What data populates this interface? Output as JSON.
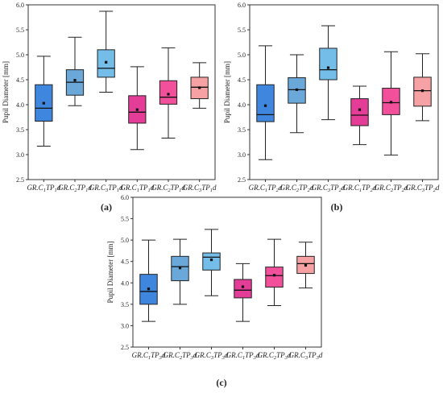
{
  "chart_data": [
    {
      "type": "box",
      "panel_label": "(a)",
      "ylabel": "Pupil Diameter [mm]",
      "ylim": [
        2.5,
        6.0
      ],
      "yticks": [
        2.5,
        3.0,
        3.5,
        4.0,
        4.5,
        5.0,
        5.5,
        6.0
      ],
      "categories": [
        {
          "prefix": "GR.C",
          "sub1": "1",
          "mid": "TP",
          "sub2": "1",
          "suffix": "d"
        },
        {
          "prefix": "GR.C",
          "sub1": "2",
          "mid": "TP",
          "sub2": "1",
          "suffix": "d"
        },
        {
          "prefix": "GR.C",
          "sub1": "3",
          "mid": "TP",
          "sub2": "1",
          "suffix": "d"
        },
        {
          "prefix": "GR.C",
          "sub1": "1",
          "mid": "TP",
          "sub2": "1",
          "suffix": "d"
        },
        {
          "prefix": "GR.C",
          "sub1": "2",
          "mid": "TP",
          "sub2": "1",
          "suffix": "d"
        },
        {
          "prefix": "GR.C",
          "sub1": "3",
          "mid": "TP",
          "sub2": "1",
          "suffix": "d"
        }
      ],
      "boxes": [
        {
          "min": 3.17,
          "q1": 3.67,
          "median": 3.93,
          "q3": 4.4,
          "max": 4.97,
          "mean": 4.03,
          "color": "#3f86de"
        },
        {
          "min": 3.98,
          "q1": 4.19,
          "median": 4.45,
          "q3": 4.7,
          "max": 5.35,
          "mean": 4.49,
          "color": "#6aa8da"
        },
        {
          "min": 4.25,
          "q1": 4.55,
          "median": 4.73,
          "q3": 5.1,
          "max": 5.87,
          "mean": 4.85,
          "color": "#74bde8"
        },
        {
          "min": 3.1,
          "q1": 3.63,
          "median": 3.85,
          "q3": 4.18,
          "max": 4.76,
          "mean": 3.9,
          "color": "#e33d97"
        },
        {
          "min": 3.33,
          "q1": 4.01,
          "median": 4.15,
          "q3": 4.48,
          "max": 5.14,
          "mean": 4.21,
          "color": "#f2509a"
        },
        {
          "min": 3.93,
          "q1": 4.12,
          "median": 4.35,
          "q3": 4.55,
          "max": 4.84,
          "mean": 4.34,
          "color": "#f6a2a4"
        }
      ]
    },
    {
      "type": "box",
      "panel_label": "(b)",
      "ylabel": "Pupil Diameter [mm]",
      "ylim": [
        2.5,
        6.0
      ],
      "yticks": [
        2.5,
        3.0,
        3.5,
        4.0,
        4.5,
        5.0,
        5.5,
        6.0
      ],
      "categories": [
        {
          "prefix": "GR.C",
          "sub1": "1",
          "mid": "TP",
          "sub2": "2",
          "suffix": "d"
        },
        {
          "prefix": "GR.C",
          "sub1": "2",
          "mid": "TP",
          "sub2": "2",
          "suffix": "d"
        },
        {
          "prefix": "GR.C",
          "sub1": "3",
          "mid": "TP",
          "sub2": "2",
          "suffix": "d"
        },
        {
          "prefix": "GR.C",
          "sub1": "1",
          "mid": "TP",
          "sub2": "2",
          "suffix": "d"
        },
        {
          "prefix": "GR.C",
          "sub1": "2",
          "mid": "TP",
          "sub2": "2",
          "suffix": "d"
        },
        {
          "prefix": "GR.C",
          "sub1": "3",
          "mid": "TP",
          "sub2": "2",
          "suffix": "d"
        }
      ],
      "boxes": [
        {
          "min": 2.9,
          "q1": 3.66,
          "median": 3.8,
          "q3": 4.4,
          "max": 5.18,
          "mean": 3.98,
          "color": "#3f86de"
        },
        {
          "min": 3.44,
          "q1": 4.03,
          "median": 4.3,
          "q3": 4.54,
          "max": 5.0,
          "mean": 4.3,
          "color": "#6aa8da"
        },
        {
          "min": 3.7,
          "q1": 4.5,
          "median": 4.7,
          "q3": 5.13,
          "max": 5.58,
          "mean": 4.74,
          "color": "#74bde8"
        },
        {
          "min": 3.2,
          "q1": 3.58,
          "median": 3.79,
          "q3": 4.12,
          "max": 4.37,
          "mean": 3.9,
          "color": "#e33d97"
        },
        {
          "min": 2.99,
          "q1": 3.8,
          "median": 4.04,
          "q3": 4.33,
          "max": 5.06,
          "mean": 4.05,
          "color": "#f2509a"
        },
        {
          "min": 3.68,
          "q1": 3.97,
          "median": 4.28,
          "q3": 4.55,
          "max": 5.02,
          "mean": 4.28,
          "color": "#f6a2a4"
        }
      ]
    },
    {
      "type": "box",
      "panel_label": "(c)",
      "ylabel": "Pupil Diameter [mm]",
      "ylim": [
        2.5,
        6.0
      ],
      "yticks": [
        2.5,
        3.0,
        3.5,
        4.0,
        4.5,
        5.0,
        5.5,
        6.0
      ],
      "categories": [
        {
          "prefix": "GR.C",
          "sub1": "1",
          "mid": "TP",
          "sub2": "3",
          "suffix": "d"
        },
        {
          "prefix": "GR.C",
          "sub1": "2",
          "mid": "TP",
          "sub2": "3",
          "suffix": "d"
        },
        {
          "prefix": "GR.C",
          "sub1": "3",
          "mid": "TP",
          "sub2": "3",
          "suffix": "d"
        },
        {
          "prefix": "GR.C",
          "sub1": "1",
          "mid": "TP",
          "sub2": "3",
          "suffix": "d"
        },
        {
          "prefix": "GR.C",
          "sub1": "2",
          "mid": "TP",
          "sub2": "3",
          "suffix": "d"
        },
        {
          "prefix": "GR.C",
          "sub1": "3",
          "mid": "TP",
          "sub2": "3",
          "suffix": "d"
        }
      ],
      "boxes": [
        {
          "min": 3.1,
          "q1": 3.5,
          "median": 3.8,
          "q3": 4.2,
          "max": 5.0,
          "mean": 3.86,
          "color": "#3f86de"
        },
        {
          "min": 3.5,
          "q1": 4.05,
          "median": 4.38,
          "q3": 4.62,
          "max": 5.02,
          "mean": 4.35,
          "color": "#6aa8da"
        },
        {
          "min": 3.7,
          "q1": 4.3,
          "median": 4.6,
          "q3": 4.7,
          "max": 5.25,
          "mean": 4.54,
          "color": "#74bde8"
        },
        {
          "min": 3.1,
          "q1": 3.65,
          "median": 3.83,
          "q3": 4.08,
          "max": 4.45,
          "mean": 3.91,
          "color": "#e33d97"
        },
        {
          "min": 3.47,
          "q1": 3.9,
          "median": 4.17,
          "q3": 4.37,
          "max": 5.02,
          "mean": 4.18,
          "color": "#f2509a"
        },
        {
          "min": 3.88,
          "q1": 4.22,
          "median": 4.45,
          "q3": 4.62,
          "max": 4.95,
          "mean": 4.41,
          "color": "#f6a2a4"
        }
      ]
    }
  ]
}
